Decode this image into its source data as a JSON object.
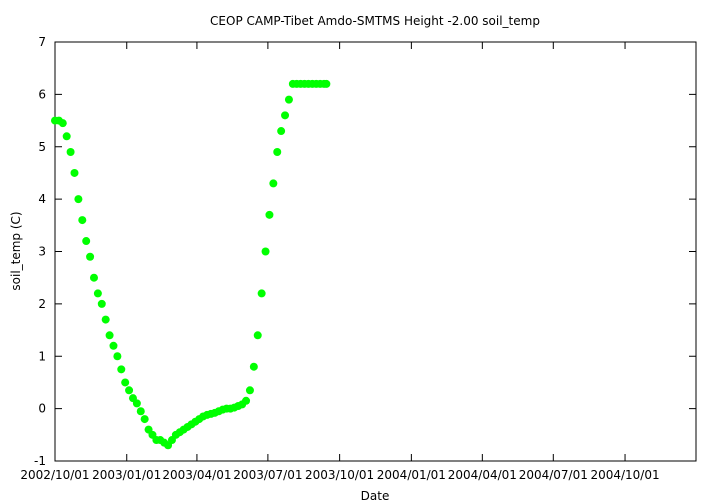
{
  "chart_data": {
    "type": "scatter",
    "title": "CEOP CAMP-Tibet Amdo-SMTMS Height -2.00 soil_temp",
    "xlabel": "Date",
    "ylabel": "soil_temp (C)",
    "ylim": [
      -1,
      7
    ],
    "yticks": [
      "-1",
      "0",
      "1",
      "2",
      "3",
      "4",
      "5",
      "6",
      "7"
    ],
    "xlim": [
      "2002-10-01",
      "2004-12-31"
    ],
    "xticks": [
      "2002/10/01",
      "2003/01/01",
      "2003/04/01",
      "2003/07/01",
      "2003/10/01",
      "2004/01/01",
      "2004/04/01",
      "2004/07/01",
      "2004/10/01"
    ],
    "grid": false,
    "legend": "none",
    "marker_color": "#00ff00",
    "series": [
      {
        "x": [
          "2002-10-01",
          "2002-10-06",
          "2002-10-11",
          "2002-10-16",
          "2002-10-21",
          "2002-10-26",
          "2002-10-31",
          "2002-11-05",
          "2002-11-10",
          "2002-11-15",
          "2002-11-20",
          "2002-11-25",
          "2002-11-30",
          "2002-12-05",
          "2002-12-10",
          "2002-12-15",
          "2002-12-20",
          "2002-12-25",
          "2002-12-30",
          "2003-01-04",
          "2003-01-09",
          "2003-01-14",
          "2003-01-19",
          "2003-01-24",
          "2003-01-29",
          "2003-02-03",
          "2003-02-08",
          "2003-02-13",
          "2003-02-18",
          "2003-02-23",
          "2003-02-28",
          "2003-03-05",
          "2003-03-10",
          "2003-03-15",
          "2003-03-20",
          "2003-03-25",
          "2003-03-30",
          "2003-04-04",
          "2003-04-09",
          "2003-04-14",
          "2003-04-19",
          "2003-04-24",
          "2003-04-29",
          "2003-05-04",
          "2003-05-09",
          "2003-05-14",
          "2003-05-19",
          "2003-05-24",
          "2003-05-29",
          "2003-06-03",
          "2003-06-08",
          "2003-06-13",
          "2003-06-18",
          "2003-06-23",
          "2003-06-28",
          "2003-07-03",
          "2003-07-08",
          "2003-07-13",
          "2003-07-18",
          "2003-07-23",
          "2003-07-28",
          "2003-08-02",
          "2003-08-07",
          "2003-08-12",
          "2003-08-17",
          "2003-08-22",
          "2003-08-27",
          "2003-09-01",
          "2003-09-06",
          "2003-09-11",
          "2003-09-14"
        ],
        "y": [
          5.5,
          5.5,
          5.45,
          5.2,
          4.9,
          4.5,
          4.0,
          3.6,
          3.2,
          2.9,
          2.5,
          2.2,
          2.0,
          1.7,
          1.4,
          1.2,
          1.0,
          0.75,
          0.5,
          0.35,
          0.2,
          0.1,
          -0.05,
          -0.2,
          -0.4,
          -0.5,
          -0.6,
          -0.6,
          -0.65,
          -0.7,
          -0.6,
          -0.5,
          -0.45,
          -0.4,
          -0.35,
          -0.3,
          -0.25,
          -0.2,
          -0.15,
          -0.12,
          -0.1,
          -0.08,
          -0.05,
          -0.02,
          0.0,
          0.0,
          0.02,
          0.05,
          0.08,
          0.15,
          0.35,
          0.8,
          1.4,
          2.2,
          3.0,
          3.7,
          4.3,
          4.9,
          5.3,
          5.6,
          5.9,
          6.2,
          6.2,
          6.2,
          6.2,
          6.2,
          6.2,
          6.2,
          6.2,
          6.2,
          6.2
        ]
      }
    ]
  }
}
